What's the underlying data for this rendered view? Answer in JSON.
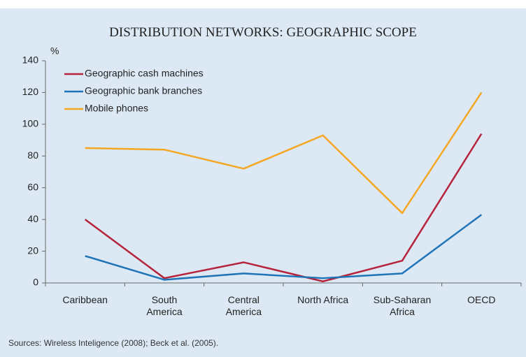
{
  "chart_data": {
    "type": "line",
    "title": "DISTRIBUTION NETWORKS: GEOGRAPHIC SCOPE",
    "y_label": "%",
    "source": "Sources: Wireless Inteligence (2008); Beck et al. (2005).",
    "categories": [
      "Caribbean",
      "South\nAmerica",
      "Central\nAmerica",
      "North Africa",
      "Sub-Saharan\nAfrica",
      "OECD"
    ],
    "series": [
      {
        "name": "Geographic cash machines",
        "color": "#b5243a",
        "values": [
          40,
          3,
          13,
          1,
          14,
          94
        ]
      },
      {
        "name": "Geographic bank branches",
        "color": "#1f73b7",
        "values": [
          17,
          2,
          6,
          3,
          6,
          43
        ]
      },
      {
        "name": "Mobile phones",
        "color": "#f5a623",
        "values": [
          85,
          84,
          72,
          93,
          44,
          120
        ]
      }
    ],
    "ylim": [
      0,
      140
    ],
    "yticks": [
      0,
      20,
      40,
      60,
      80,
      100,
      120,
      140
    ],
    "grid": false,
    "legend": "top-left"
  }
}
